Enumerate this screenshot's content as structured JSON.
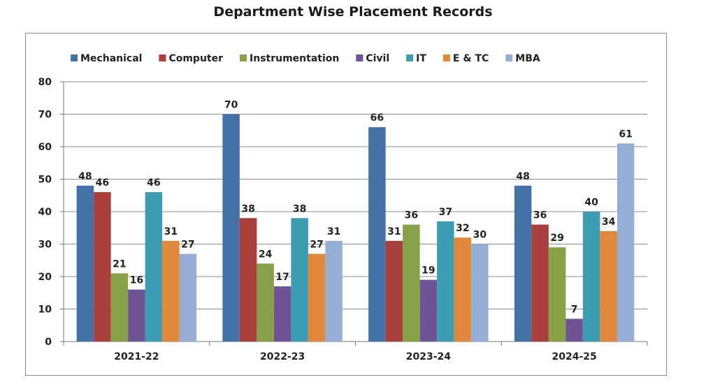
{
  "chart_data": {
    "type": "bar",
    "title": "Department Wise Placement Records",
    "xlabel": "",
    "ylabel": "",
    "ylim": [
      0,
      80
    ],
    "yticks": [
      0,
      10,
      20,
      30,
      40,
      50,
      60,
      70,
      80
    ],
    "grid": true,
    "legend_position": "top",
    "categories": [
      "2021-22",
      "2022-23",
      "2023-24",
      "2024-25"
    ],
    "series": [
      {
        "name": "Mechanical",
        "color": "#4472A8",
        "values": [
          48,
          70,
          66,
          48
        ]
      },
      {
        "name": "Computer",
        "color": "#A9403C",
        "values": [
          46,
          38,
          31,
          36
        ]
      },
      {
        "name": "Instrumentation",
        "color": "#87A146",
        "values": [
          21,
          24,
          36,
          29
        ]
      },
      {
        "name": "Civil",
        "color": "#6E5395",
        "values": [
          16,
          17,
          19,
          7
        ]
      },
      {
        "name": "IT",
        "color": "#3C9CB2",
        "values": [
          46,
          38,
          37,
          40
        ]
      },
      {
        "name": "E & TC",
        "color": "#E0893B",
        "values": [
          31,
          27,
          32,
          34
        ]
      },
      {
        "name": "MBA",
        "color": "#95AED6",
        "values": [
          27,
          31,
          30,
          61
        ]
      }
    ]
  }
}
